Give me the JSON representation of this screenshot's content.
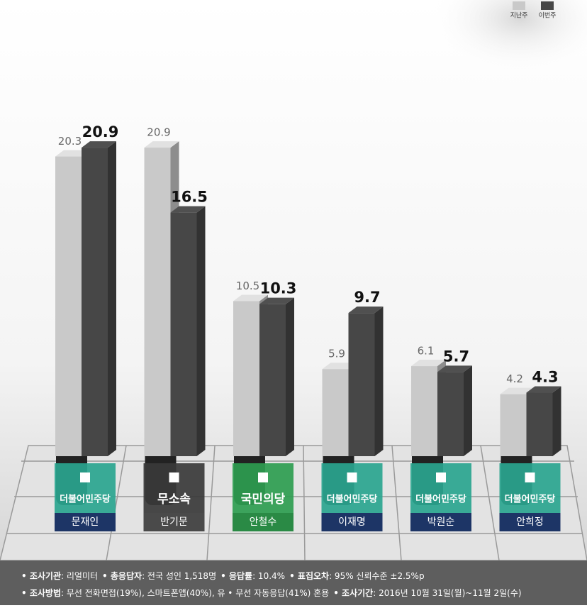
{
  "chart_data": {
    "type": "bar",
    "categories": [
      "문재인",
      "반기문",
      "안철수",
      "이재명",
      "박원순",
      "안희정"
    ],
    "parties": [
      "더불어민주당",
      "무소속",
      "국민의당",
      "더불어민주당",
      "더불어민주당",
      "더불어민주당"
    ],
    "series": [
      {
        "name": "지난주",
        "color": "#c9c9c9",
        "values": [
          20.3,
          20.9,
          10.5,
          5.9,
          6.1,
          4.2
        ]
      },
      {
        "name": "이번주",
        "color": "#474747",
        "values": [
          20.9,
          16.5,
          10.3,
          9.7,
          5.7,
          4.3
        ]
      }
    ],
    "ylim": [
      0,
      21
    ],
    "footer": [
      [
        {
          "label": "• 조사기관",
          "text": ": 리얼미터"
        },
        {
          "label": "• 총응답자",
          "text": ": 전국 성인 1,518명"
        },
        {
          "label": "• 응답률",
          "text": ": 10.4%"
        },
        {
          "label": "• 표집오차",
          "text": ": 95% 신뢰수준 ±2.5%p"
        }
      ],
      [
        {
          "label": "• 조사방법",
          "text": ": 무선 전화면접(19%), 스마트폰앱(40%), 유 • 무선 자동응답(41%) 혼용"
        },
        {
          "label": "• 조사기간",
          "text": ": 2016년 10월 31일(월)~11월 2일(수)"
        }
      ]
    ]
  }
}
